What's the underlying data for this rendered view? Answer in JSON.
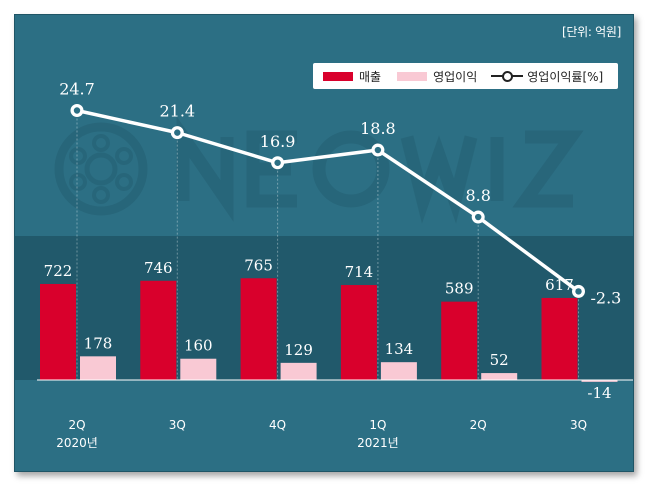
{
  "unit_label": "[단위: 억원]",
  "colors": {
    "background": "#2c6f84",
    "band": "#21596b",
    "revenue": "#d9002c",
    "operating_profit": "#f9c9d4",
    "margin_line": "#ffffff"
  },
  "chart_data": {
    "type": "bar+line",
    "categories": [
      "2Q",
      "3Q",
      "4Q",
      "1Q",
      "2Q",
      "3Q"
    ],
    "year_labels": [
      {
        "index": 0,
        "label": "2020년"
      },
      {
        "index": 3,
        "label": "2021년"
      }
    ],
    "series": [
      {
        "name": "매출",
        "type": "bar",
        "values": [
          722,
          746,
          765,
          714,
          589,
          617
        ]
      },
      {
        "name": "영업이익",
        "type": "bar",
        "values": [
          178,
          160,
          129,
          134,
          52,
          -14
        ]
      },
      {
        "name": "영업이익률[%]",
        "type": "line",
        "values": [
          24.7,
          21.4,
          16.9,
          18.8,
          8.8,
          -2.3
        ]
      }
    ],
    "data_labels": {
      "revenue": [
        "722",
        "746",
        "765",
        "714",
        "589",
        "617"
      ],
      "operating_profit": [
        "178",
        "160",
        "129",
        "134",
        "52",
        "-14"
      ],
      "margin": [
        "24.7",
        "21.4",
        "16.9",
        "18.8",
        "8.8",
        "-2.3"
      ]
    },
    "legend_position": "top-right",
    "grid": false
  }
}
